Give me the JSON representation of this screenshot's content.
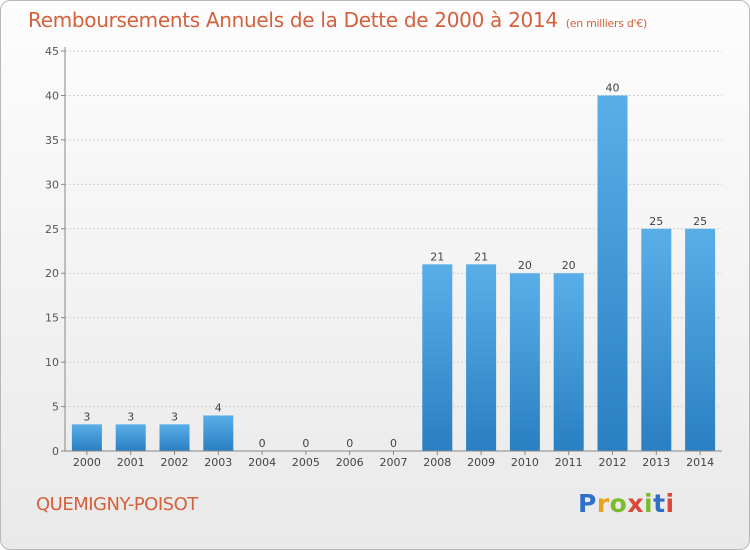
{
  "header": {
    "title": "Remboursements Annuels de la Dette de 2000 à 2014",
    "unit": "(en milliers d'€)"
  },
  "footer": {
    "commune": "QUEMIGNY-POISOT",
    "logo": "Proxiti"
  },
  "colors": {
    "title": "#d4603c",
    "bar_top": "#5aaee8",
    "bar_bottom": "#2a7fc2",
    "axis": "#888888",
    "grid": "#d2d2d2"
  },
  "chart_data": {
    "type": "bar",
    "title": "Remboursements Annuels de la Dette de 2000 à 2014",
    "subtitle": "(en milliers d'€)",
    "categories": [
      "2000",
      "2001",
      "2002",
      "2003",
      "2004",
      "2005",
      "2006",
      "2007",
      "2008",
      "2009",
      "2010",
      "2011",
      "2012",
      "2013",
      "2014"
    ],
    "values": [
      3,
      3,
      3,
      4,
      0,
      0,
      0,
      0,
      21,
      21,
      20,
      20,
      40,
      25,
      25
    ],
    "ylim": [
      0,
      45
    ],
    "yticks": [
      0,
      5,
      10,
      15,
      20,
      25,
      30,
      35,
      40,
      45
    ],
    "grid": true,
    "legend": "none",
    "data_labels": true
  }
}
